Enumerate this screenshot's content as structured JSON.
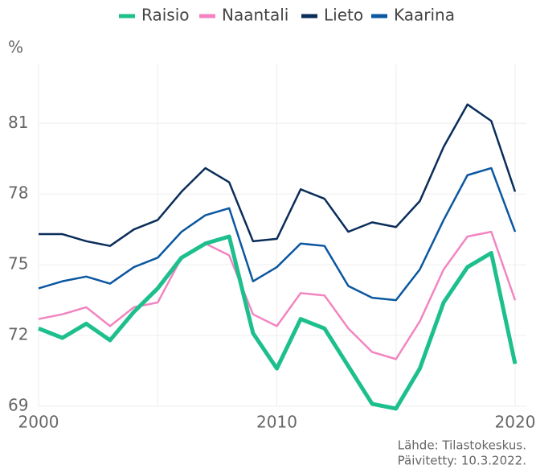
{
  "chart_data": {
    "type": "line",
    "y_label": "%",
    "x": [
      2000,
      2001,
      2002,
      2003,
      2004,
      2005,
      2006,
      2007,
      2008,
      2009,
      2010,
      2011,
      2012,
      2013,
      2014,
      2015,
      2016,
      2017,
      2018,
      2019,
      2020
    ],
    "series": [
      {
        "name": "Raisio",
        "color": "#1dbf8c",
        "values": [
          72.3,
          71.9,
          72.5,
          71.8,
          73.0,
          74.0,
          75.3,
          75.9,
          76.2,
          72.1,
          70.6,
          72.7,
          72.3,
          70.7,
          69.1,
          68.9,
          70.6,
          73.4,
          74.9,
          75.5,
          70.8
        ]
      },
      {
        "name": "Naantali",
        "color": "#f285c1",
        "values": [
          72.7,
          72.9,
          73.2,
          72.4,
          73.2,
          73.4,
          75.3,
          75.9,
          75.4,
          72.9,
          72.4,
          73.8,
          73.7,
          72.3,
          71.3,
          71.0,
          72.6,
          74.8,
          76.2,
          76.4,
          73.5
        ]
      },
      {
        "name": "Lieto",
        "color": "#0a2d5a",
        "values": [
          76.3,
          76.3,
          76.0,
          75.8,
          76.5,
          76.9,
          78.1,
          79.1,
          78.5,
          76.0,
          76.1,
          78.2,
          77.8,
          76.4,
          76.8,
          76.6,
          77.7,
          80.0,
          81.8,
          81.1,
          78.1
        ]
      },
      {
        "name": "Kaarina",
        "color": "#0b57a0",
        "values": [
          74.0,
          74.3,
          74.5,
          74.2,
          74.9,
          75.3,
          76.4,
          77.1,
          77.4,
          74.3,
          74.9,
          75.9,
          75.8,
          74.1,
          73.6,
          73.5,
          74.8,
          76.9,
          78.8,
          79.1,
          76.4
        ]
      }
    ],
    "xlim": [
      2000,
      2020
    ],
    "xticks": [
      2000,
      2010,
      2020
    ],
    "x_minor_ticks": [
      2005,
      2015
    ],
    "ylim": [
      69,
      83.5
    ],
    "yticks": [
      69,
      72,
      75,
      78,
      81
    ],
    "grid": true,
    "legend": "top",
    "source": "Lähde: Tilastokeskus.",
    "updated": "Päivitetty: 10.3.2022."
  }
}
